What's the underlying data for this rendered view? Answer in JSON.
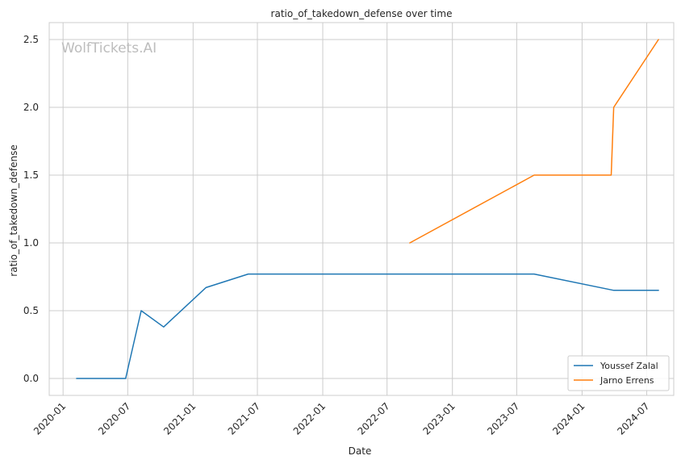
{
  "chart_data": {
    "type": "line",
    "title": "ratio_of_takedown_defense over time",
    "xlabel": "Date",
    "ylabel": "ratio_of_takedown_defense",
    "watermark": "WolfTickets.AI",
    "xlim": [
      "2019-11-23",
      "2024-09-15"
    ],
    "ylim": [
      -0.125,
      2.625
    ],
    "x_ticks": [
      "2020-01",
      "2020-07",
      "2021-01",
      "2021-07",
      "2022-01",
      "2022-07",
      "2023-01",
      "2023-07",
      "2024-01",
      "2024-07"
    ],
    "y_ticks": [
      0.0,
      0.5,
      1.0,
      1.5,
      2.0,
      2.5
    ],
    "y_tick_labels": [
      "0.0",
      "0.5",
      "1.0",
      "1.5",
      "2.0",
      "2.5"
    ],
    "grid": true,
    "legend_position": "bottom-right",
    "series": [
      {
        "name": "Youssef Zalal",
        "color": "#1f77b4",
        "x": [
          "2020-02-08",
          "2020-06-25",
          "2020-08-08",
          "2020-10-10",
          "2021-02-06",
          "2021-06-05",
          "2023-08-19",
          "2024-03-30",
          "2024-08-03"
        ],
        "y": [
          0.0,
          0.0,
          0.5,
          0.38,
          0.67,
          0.77,
          0.77,
          0.65,
          0.65
        ]
      },
      {
        "name": "Jarno Errens",
        "color": "#ff7f0e",
        "x": [
          "2022-09-03",
          "2023-08-19",
          "2024-03-23",
          "2024-03-30",
          "2024-08-03"
        ],
        "y": [
          1.0,
          1.5,
          1.5,
          2.0,
          2.5
        ]
      }
    ]
  }
}
